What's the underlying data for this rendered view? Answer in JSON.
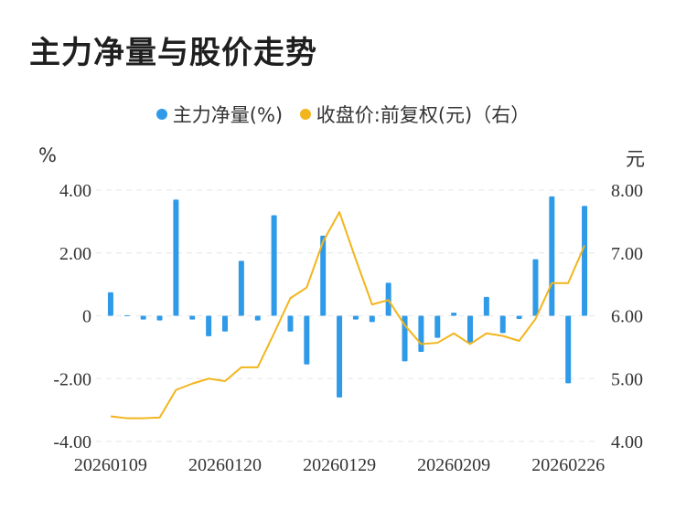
{
  "title": "主力净量与股价走势",
  "legend": {
    "series1": "主力净量(%)",
    "series2": "收盘价:前复权(元)（右）"
  },
  "units": {
    "left": "%",
    "right": "元"
  },
  "colors": {
    "bar": "#2f9ae8",
    "line": "#f2b51c",
    "grid": "#e6e6e6"
  },
  "chart_data": {
    "type": "bar+line",
    "x_tick_labels": [
      "20260109",
      "20260120",
      "20260129",
      "20260209",
      "20260226"
    ],
    "x_tick_index": [
      0,
      7,
      14,
      21,
      28
    ],
    "left_axis": {
      "ylim": [
        -4,
        4
      ],
      "ticks": [
        "4.00",
        "2.00",
        "0",
        "-2.00",
        "-4.00"
      ],
      "tick_values": [
        4,
        2,
        0,
        -2,
        -4
      ]
    },
    "right_axis": {
      "ylim": [
        4,
        8
      ],
      "ticks": [
        "8.00",
        "7.00",
        "6.00",
        "5.00",
        "4.00"
      ],
      "tick_values": [
        8,
        7,
        6,
        5,
        4
      ]
    },
    "grid": true,
    "legend_position": "top",
    "series": [
      {
        "name": "主力净量(%)",
        "type": "bar",
        "axis": "left",
        "values": [
          0.75,
          0.02,
          -0.12,
          -0.15,
          3.7,
          -0.12,
          -0.65,
          -0.5,
          1.75,
          -0.15,
          3.2,
          -0.5,
          -1.55,
          2.55,
          -2.6,
          -0.12,
          -0.2,
          1.05,
          -1.45,
          -1.15,
          -0.7,
          0.1,
          -0.85,
          0.6,
          -0.55,
          -0.1,
          1.8,
          3.8,
          -2.15,
          3.5
        ]
      },
      {
        "name": "收盘价:前复权(元)（右）",
        "type": "line",
        "axis": "right",
        "values": [
          4.4,
          4.37,
          4.37,
          4.38,
          4.82,
          4.92,
          5.0,
          4.96,
          5.18,
          5.18,
          5.72,
          6.28,
          6.45,
          7.18,
          7.65,
          6.9,
          6.18,
          6.25,
          5.85,
          5.55,
          5.57,
          5.72,
          5.55,
          5.72,
          5.68,
          5.6,
          5.95,
          6.52,
          6.52,
          7.12
        ]
      }
    ]
  }
}
